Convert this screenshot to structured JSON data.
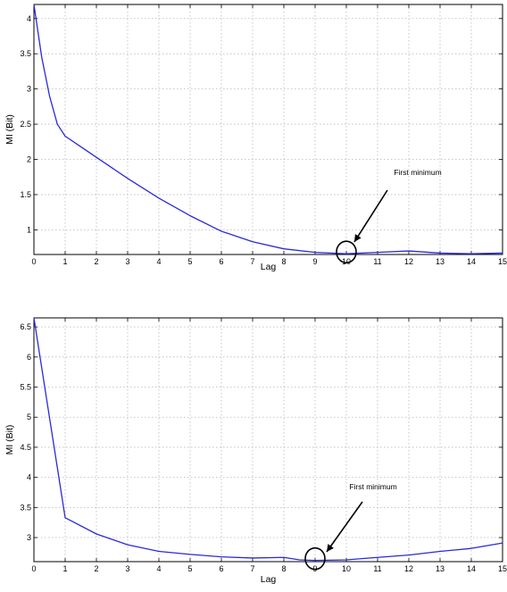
{
  "chart_data": [
    {
      "type": "line",
      "title": "",
      "xlabel": "Lag",
      "ylabel": "MI (Bit)",
      "xlim": [
        0,
        15
      ],
      "ylim": [
        0.65,
        4.2
      ],
      "grid": true,
      "x_ticks": [
        0,
        1,
        2,
        3,
        4,
        5,
        6,
        7,
        8,
        9,
        10,
        11,
        12,
        13,
        14,
        15
      ],
      "y_ticks": [
        1,
        1.5,
        2,
        2.5,
        3,
        3.5,
        4
      ],
      "x_tick_labels": [
        "0",
        "1",
        "2",
        "3",
        "4",
        "5",
        "6",
        "7",
        "8",
        "9",
        "10",
        "11",
        "12",
        "13",
        "14",
        "15"
      ],
      "y_tick_labels": [
        "1",
        "1.5",
        "2",
        "2.5",
        "3",
        "3.5",
        "4"
      ],
      "series": [
        {
          "x": [
            0,
            0.25,
            0.5,
            0.75,
            1,
            1.5,
            2,
            3,
            4,
            5,
            6,
            7,
            8,
            9,
            10,
            11,
            12,
            13,
            14,
            15
          ],
          "values": [
            4.2,
            3.45,
            2.9,
            2.5,
            2.33,
            2.18,
            2.03,
            1.73,
            1.45,
            1.2,
            0.98,
            0.83,
            0.73,
            0.68,
            0.66,
            0.68,
            0.7,
            0.67,
            0.66,
            0.67
          ],
          "color": "#2a2ad8"
        }
      ],
      "annotation": {
        "text": "First minimum",
        "x": 10,
        "y": 0.66
      }
    },
    {
      "type": "line",
      "title": "",
      "xlabel": "Lag",
      "ylabel": "MI (Bit)",
      "xlim": [
        0,
        15
      ],
      "ylim": [
        2.6,
        6.65
      ],
      "grid": true,
      "x_ticks": [
        0,
        1,
        2,
        3,
        4,
        5,
        6,
        7,
        8,
        9,
        10,
        11,
        12,
        13,
        14,
        15
      ],
      "y_ticks": [
        3,
        3.5,
        4,
        4.5,
        5,
        5.5,
        6,
        6.5
      ],
      "x_tick_labels": [
        "0",
        "1",
        "2",
        "3",
        "4",
        "5",
        "6",
        "7",
        "8",
        "9",
        "10",
        "11",
        "12",
        "13",
        "14",
        "15"
      ],
      "y_tick_labels": [
        "3",
        "3.5",
        "4",
        "4.5",
        "5",
        "5.5",
        "6",
        "6.5"
      ],
      "series": [
        {
          "x": [
            0,
            1,
            2,
            3,
            4,
            5,
            6,
            7,
            8,
            8.5,
            9,
            10,
            11,
            12,
            13,
            14,
            15
          ],
          "values": [
            6.65,
            3.33,
            3.06,
            2.88,
            2.77,
            2.72,
            2.68,
            2.66,
            2.67,
            2.63,
            2.62,
            2.63,
            2.67,
            2.71,
            2.77,
            2.82,
            2.91
          ],
          "color": "#2a2ad8"
        }
      ],
      "annotation": {
        "text": "First minimum",
        "x": 9,
        "y": 2.62
      }
    }
  ]
}
